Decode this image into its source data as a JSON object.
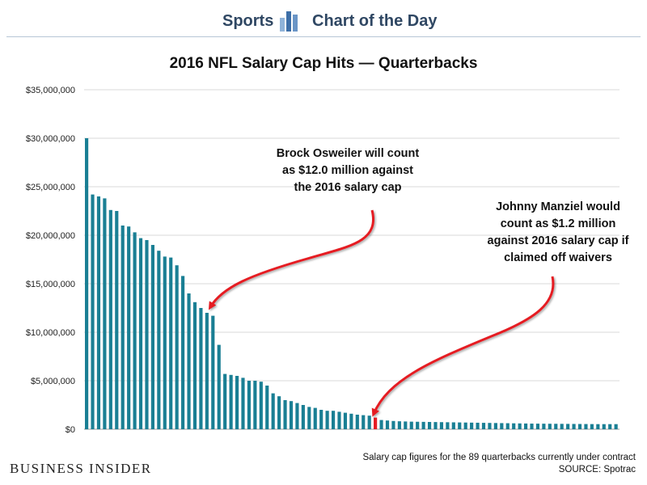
{
  "header": {
    "sports": "Sports",
    "chart_of_the_day": "Chart of the Day"
  },
  "annotations": {
    "osweiler": [
      "Brock Osweiler will count",
      "as $12.0 million against",
      "the 2016 salary cap"
    ],
    "manziel": [
      "Johnny Manziel would",
      "count as $1.2 million",
      "against 2016 salary cap if",
      "claimed off waivers"
    ]
  },
  "footer": {
    "brand": "BUSINESS INSIDER",
    "note": "Salary cap figures for the 89 quarterbacks currently under contract",
    "source": "SOURCE: Spotrac"
  },
  "colors": {
    "bar": "#1a7f94",
    "highlight": "#e51c23",
    "arrow": "#e51c23",
    "grid": "#d9d9d9",
    "header_text": "#2f4763"
  },
  "chart_data": {
    "type": "bar",
    "title": "2016 NFL Salary Cap Hits — Quarterbacks",
    "xlabel": "",
    "ylabel": "",
    "ylim": [
      0,
      35000000
    ],
    "yticks": [
      0,
      5000000,
      10000000,
      15000000,
      20000000,
      25000000,
      30000000,
      35000000
    ],
    "ytick_labels": [
      "$0",
      "$5,000,000",
      "$10,000,000",
      "$15,000,000",
      "$20,000,000",
      "$25,000,000",
      "$30,000,000",
      "$35,000,000"
    ],
    "grid": true,
    "highlight_index": 48,
    "values": [
      30000000,
      24200000,
      24000000,
      23800000,
      22600000,
      22500000,
      21000000,
      20900000,
      20300000,
      19700000,
      19500000,
      19000000,
      18400000,
      17800000,
      17700000,
      16900000,
      15800000,
      14000000,
      13100000,
      12500000,
      12000000,
      11700000,
      8700000,
      5700000,
      5600000,
      5500000,
      5300000,
      5000000,
      5000000,
      4900000,
      4500000,
      3700000,
      3400000,
      3000000,
      2900000,
      2700000,
      2500000,
      2300000,
      2200000,
      2000000,
      1900000,
      1900000,
      1800000,
      1700000,
      1600000,
      1500000,
      1450000,
      1400000,
      1200000,
      950000,
      900000,
      850000,
      820000,
      800000,
      780000,
      770000,
      760000,
      750000,
      740000,
      730000,
      720000,
      710000,
      700000,
      690000,
      680000,
      670000,
      660000,
      650000,
      640000,
      630000,
      620000,
      610000,
      600000,
      590000,
      580000,
      575000,
      570000,
      565000,
      560000,
      555000,
      550000,
      545000,
      540000,
      535000,
      530000,
      525000,
      525000,
      525000,
      525000
    ]
  }
}
